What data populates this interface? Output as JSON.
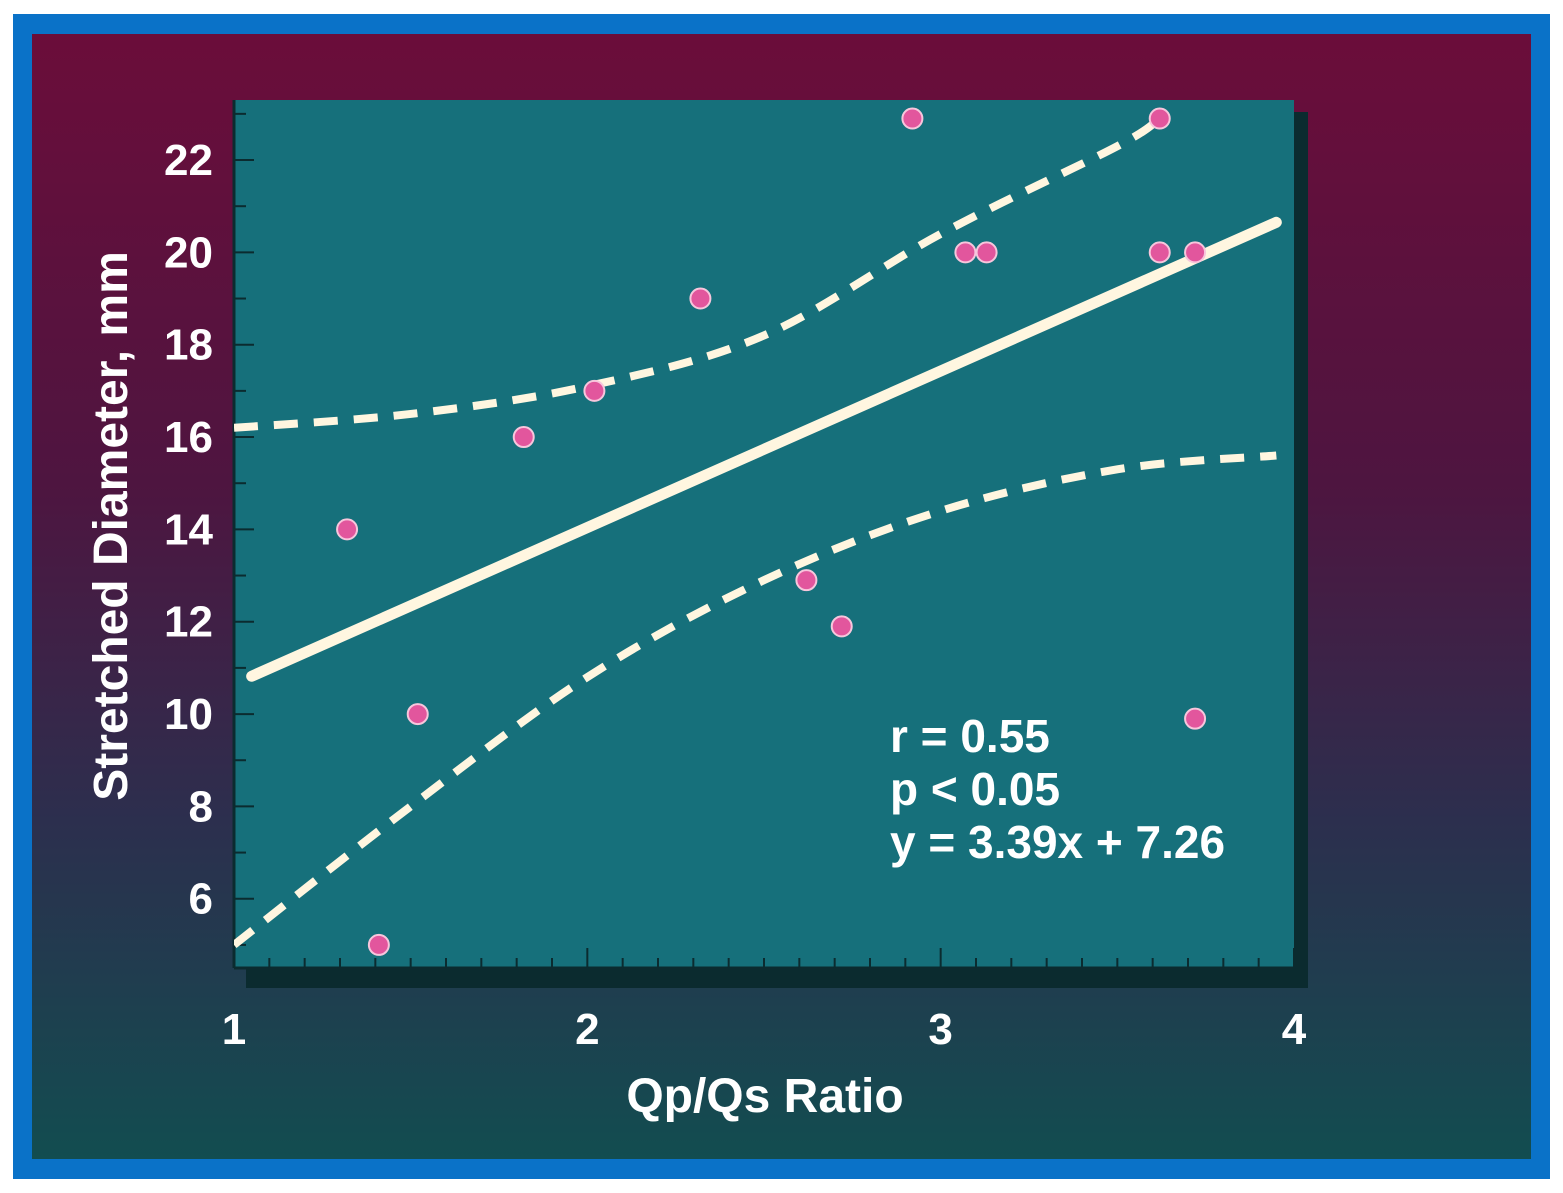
{
  "chart_data": {
    "type": "scatter",
    "title": "",
    "xlabel": "Qp/Qs Ratio",
    "ylabel": "Stretched Diameter, mm",
    "xlim": [
      1,
      4
    ],
    "ylim": [
      4.5,
      23.3
    ],
    "x_ticks": [
      "1",
      "2",
      "3",
      "4"
    ],
    "y_ticks": [
      "6",
      "8",
      "10",
      "12",
      "14",
      "16",
      "18",
      "20",
      "22"
    ],
    "points": [
      {
        "x": 1.32,
        "y": 14
      },
      {
        "x": 1.41,
        "y": 5
      },
      {
        "x": 1.52,
        "y": 10
      },
      {
        "x": 1.82,
        "y": 16
      },
      {
        "x": 2.02,
        "y": 17
      },
      {
        "x": 2.32,
        "y": 19
      },
      {
        "x": 2.62,
        "y": 12.9
      },
      {
        "x": 2.72,
        "y": 11.9
      },
      {
        "x": 2.92,
        "y": 22.9
      },
      {
        "x": 3.07,
        "y": 20
      },
      {
        "x": 3.13,
        "y": 20
      },
      {
        "x": 3.62,
        "y": 22.9
      },
      {
        "x": 3.62,
        "y": 20
      },
      {
        "x": 3.72,
        "y": 20
      },
      {
        "x": 3.72,
        "y": 9.9
      }
    ],
    "regression": {
      "slope": 3.39,
      "intercept": 7.26
    },
    "upper_band": [
      [
        1,
        16.2
      ],
      [
        1.5,
        16.5
      ],
      [
        2,
        17.1
      ],
      [
        2.5,
        18.2
      ],
      [
        3,
        20.4
      ],
      [
        3.5,
        22.3
      ],
      [
        3.62,
        22.9
      ]
    ],
    "lower_band": [
      [
        1,
        5.0
      ],
      [
        1.5,
        8.0
      ],
      [
        2,
        10.8
      ],
      [
        2.5,
        12.9
      ],
      [
        3,
        14.4
      ],
      [
        3.5,
        15.3
      ],
      [
        3.95,
        15.6
      ]
    ],
    "annotations": [
      "r = 0.55",
      "p < 0.05",
      "y = 3.39x + 7.26"
    ],
    "grid": false,
    "legend": "none"
  },
  "colors": {
    "plot_bg": "#16707b",
    "point": "#e2569d",
    "line": "#fff6e0",
    "frame": "#0a72c8"
  }
}
